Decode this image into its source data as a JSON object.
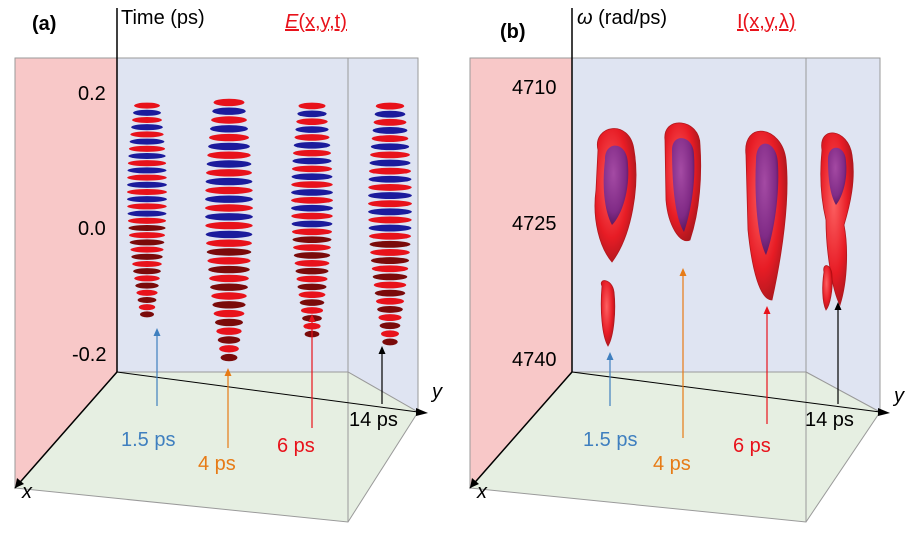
{
  "figure": {
    "colors": {
      "left_wall": "#f8c8c8",
      "back_wall": "#dfe4f2",
      "floor": "#e6efe2",
      "positive_field": "#e8121b",
      "negative_field": "#1b1b9c",
      "field_dark": "#7a0a0a",
      "intensity_outer": "#e8121b",
      "intensity_inner": "#7a2a8a",
      "c_blue": "#3f7fbf",
      "c_orange": "#e77b16",
      "c_red": "#e8121b",
      "c_black": "#000000"
    },
    "panel_a": {
      "label": "(a)",
      "vertical_axis_label": "Time (ps)",
      "title": "E(x,y,t)",
      "ticks": [
        "0.2",
        "0.0",
        "-0.2"
      ],
      "x_axis": "x",
      "y_axis": "y",
      "times": [
        {
          "label": "1.5 ps",
          "color": "#3f7fbf"
        },
        {
          "label": "4 ps",
          "color": "#e77b16"
        },
        {
          "label": "6 ps",
          "color": "#e8121b"
        },
        {
          "label": "14 ps",
          "color": "#000000"
        }
      ]
    },
    "panel_b": {
      "label": "(b)",
      "vertical_axis_label": "ω (rad/ps)",
      "title": "I(x,y,λ)",
      "ticks": [
        "4710",
        "4725",
        "4740"
      ],
      "x_axis": "x",
      "y_axis": "y",
      "times": [
        {
          "label": "1.5 ps",
          "color": "#3f7fbf"
        },
        {
          "label": "4 ps",
          "color": "#e77b16"
        },
        {
          "label": "6 ps",
          "color": "#e8121b"
        },
        {
          "label": "14 ps",
          "color": "#000000"
        }
      ]
    }
  }
}
